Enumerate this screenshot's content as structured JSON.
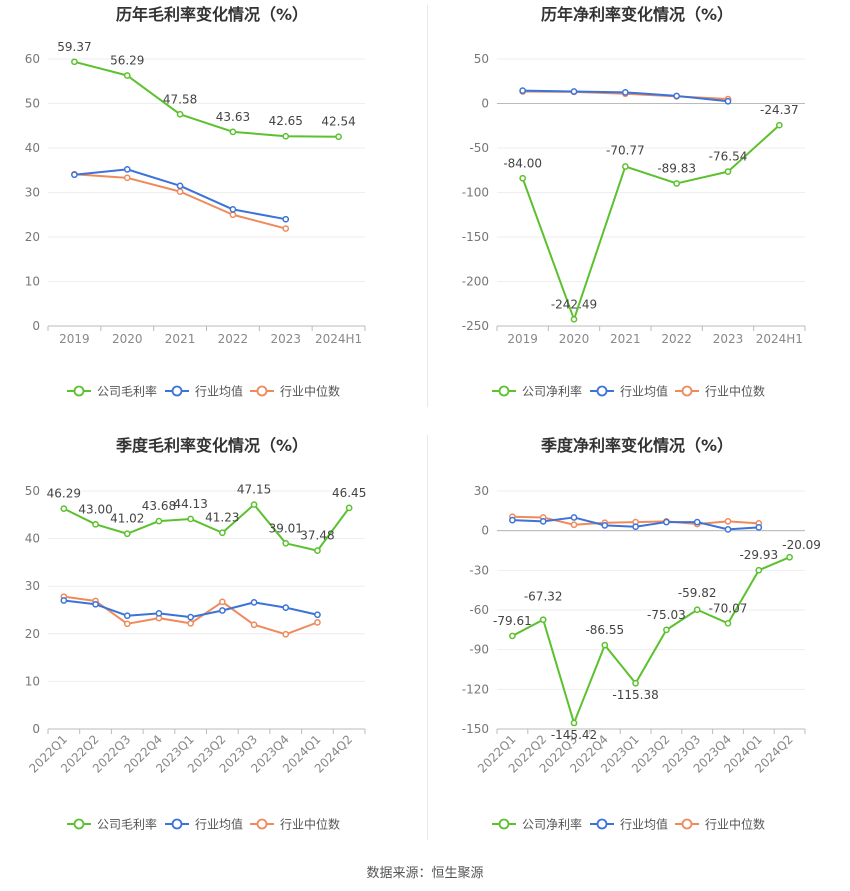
{
  "source_text": "数据来源：恒生聚源",
  "chart_data": [
    {
      "type": "line",
      "title": "历年毛利率变化情况（%）",
      "categories": [
        "2019",
        "2020",
        "2021",
        "2022",
        "2023",
        "2024H1"
      ],
      "ylim": [
        0,
        60
      ],
      "yticks": [
        0,
        10,
        20,
        30,
        40,
        50,
        60
      ],
      "grid": true,
      "legend": "bottom",
      "rotate_labels": false,
      "series": [
        {
          "name": "公司毛利率",
          "color": "#5bc12e",
          "values": [
            59.37,
            56.29,
            47.58,
            43.63,
            42.65,
            42.54
          ],
          "labels": true
        },
        {
          "name": "行业均值",
          "color": "#3b73d9",
          "values": [
            34.0,
            35.2,
            31.5,
            26.2,
            24.0,
            null
          ],
          "labels": false
        },
        {
          "name": "行业中位数",
          "color": "#ef8a5c",
          "values": [
            34.1,
            33.3,
            30.2,
            25.0,
            21.9,
            null
          ],
          "labels": false
        }
      ]
    },
    {
      "type": "line",
      "title": "历年净利率变化情况（%）",
      "categories": [
        "2019",
        "2020",
        "2021",
        "2022",
        "2023",
        "2024H1"
      ],
      "ylim": [
        -250,
        50
      ],
      "yticks": [
        -250,
        -200,
        -150,
        -100,
        -50,
        0,
        50
      ],
      "grid": true,
      "legend": "bottom",
      "rotate_labels": false,
      "series": [
        {
          "name": "公司净利率",
          "color": "#5bc12e",
          "values": [
            -84.0,
            -242.49,
            -70.77,
            -89.83,
            -76.54,
            -24.37
          ],
          "labels": true
        },
        {
          "name": "行业均值",
          "color": "#3b73d9",
          "values": [
            14.5,
            13.5,
            12.5,
            8.5,
            2.5,
            null
          ],
          "labels": false
        },
        {
          "name": "行业中位数",
          "color": "#ef8a5c",
          "values": [
            13.5,
            13.0,
            11.0,
            8.0,
            5.0,
            null
          ],
          "labels": false
        }
      ]
    },
    {
      "type": "line",
      "title": "季度毛利率变化情况（%）",
      "categories": [
        "2022Q1",
        "2022Q2",
        "2022Q3",
        "2022Q4",
        "2023Q1",
        "2023Q2",
        "2023Q3",
        "2023Q4",
        "2024Q1",
        "2024Q2"
      ],
      "ylim": [
        0,
        50
      ],
      "yticks": [
        0,
        10,
        20,
        30,
        40,
        50
      ],
      "grid": true,
      "legend": "bottom",
      "rotate_labels": true,
      "series": [
        {
          "name": "公司毛利率",
          "color": "#5bc12e",
          "values": [
            46.29,
            43.0,
            41.02,
            43.68,
            44.13,
            41.23,
            47.15,
            39.01,
            37.48,
            46.45
          ],
          "labels": true
        },
        {
          "name": "行业均值",
          "color": "#3b73d9",
          "values": [
            27.0,
            26.2,
            23.8,
            24.3,
            23.5,
            24.9,
            26.6,
            25.5,
            24.0,
            null
          ],
          "labels": false
        },
        {
          "name": "行业中位数",
          "color": "#ef8a5c",
          "values": [
            27.8,
            26.9,
            22.1,
            23.3,
            22.2,
            26.7,
            21.9,
            19.9,
            22.4,
            null
          ],
          "labels": false
        }
      ]
    },
    {
      "type": "line",
      "title": "季度净利率变化情况（%）",
      "categories": [
        "2022Q1",
        "2022Q2",
        "2022Q3",
        "2022Q4",
        "2023Q1",
        "2023Q2",
        "2023Q3",
        "2023Q4",
        "2024Q1",
        "2024Q2"
      ],
      "ylim": [
        -150,
        30
      ],
      "yticks": [
        -150,
        -120,
        -90,
        -60,
        -30,
        0,
        30
      ],
      "grid": true,
      "legend": "bottom",
      "rotate_labels": true,
      "series": [
        {
          "name": "公司净利率",
          "color": "#5bc12e",
          "values": [
            -79.61,
            -67.32,
            -145.42,
            -86.55,
            -115.38,
            -75.03,
            -59.82,
            -70.07,
            -29.93,
            -20.09
          ],
          "labels": true
        },
        {
          "name": "行业均值",
          "color": "#3b73d9",
          "values": [
            8.0,
            7.0,
            10.0,
            4.0,
            3.0,
            6.5,
            6.5,
            1.0,
            2.5,
            null
          ],
          "labels": false
        },
        {
          "name": "行业中位数",
          "color": "#ef8a5c",
          "values": [
            10.5,
            10.0,
            4.5,
            6.0,
            6.5,
            7.0,
            5.0,
            7.0,
            5.5,
            null
          ],
          "labels": false
        }
      ]
    }
  ]
}
